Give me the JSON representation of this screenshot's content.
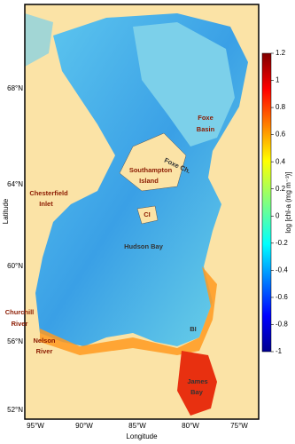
{
  "map": {
    "x_axis_label": "Longitude",
    "y_axis_label": "Latitude",
    "latitude_labels": [
      "68°N",
      "64°N",
      "60°N",
      "56°N",
      "52°N"
    ],
    "longitude_labels": [
      "95°W",
      "90°W",
      "85°W",
      "80°W",
      "75°W"
    ],
    "places": {
      "foxe_basin": [
        "Foxe",
        "Basin"
      ],
      "foxe_channel": "Foxe Ch.",
      "southampton_island": [
        "Southampton",
        "Island"
      ],
      "chesterfield_inlet": [
        "Chesterfield",
        "Inlet"
      ],
      "coats_island": "CI",
      "hudson_bay": "Hudson Bay",
      "churchill_river": [
        "Churchill",
        "River"
      ],
      "nelson_river": [
        "Nelson",
        "River"
      ],
      "belcher_islands": "BI",
      "james_bay": [
        "James",
        "Bay"
      ]
    }
  },
  "colorbar": {
    "label": "log [chl-a (mg m⁻³)]",
    "lim": [
      -1,
      1.2
    ],
    "ticks": [
      1.2,
      1,
      0.8,
      0.6,
      0.4,
      0.2,
      0,
      -0.2,
      -0.4,
      -0.6,
      -0.8,
      -1
    ]
  }
}
